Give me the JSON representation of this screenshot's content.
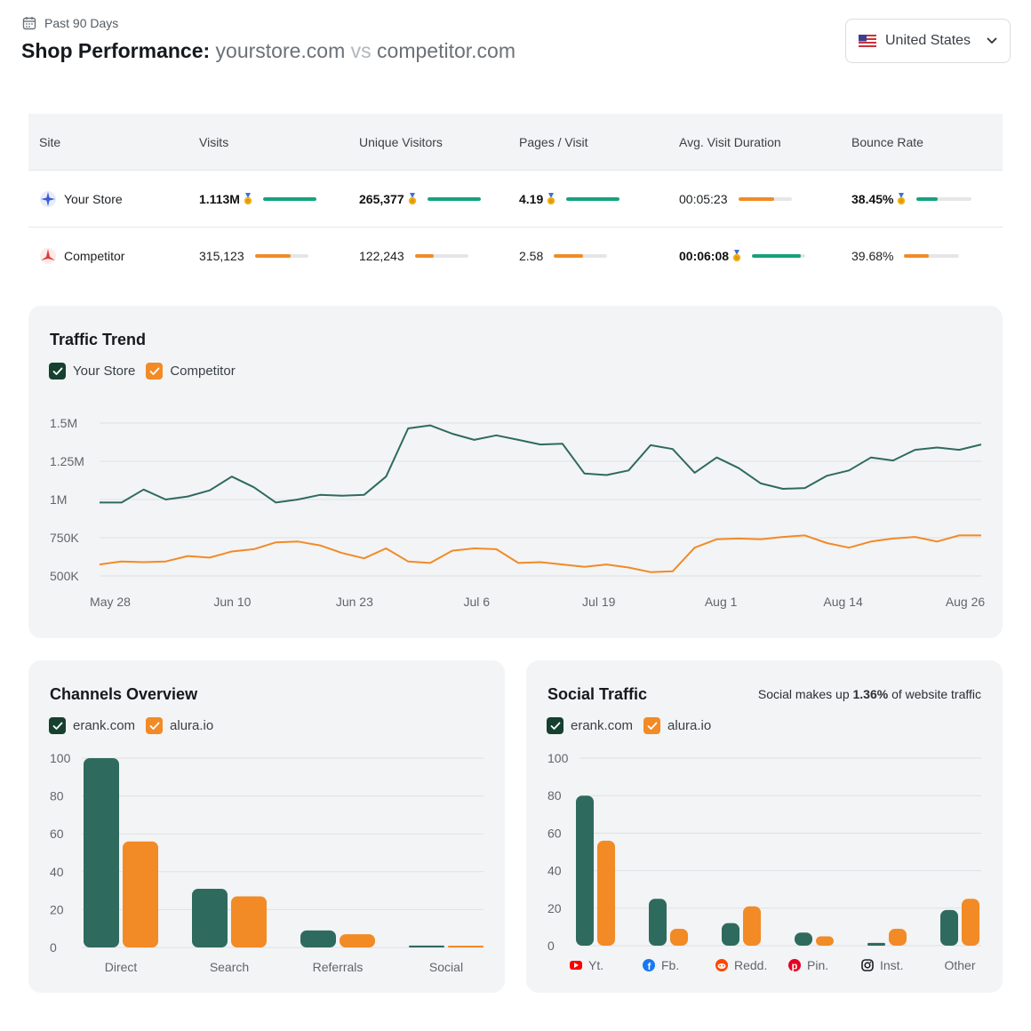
{
  "header": {
    "period": "Past 90 Days",
    "title_prefix": "Shop Performance:",
    "site_a": "yourstore.com",
    "vs": "vs",
    "site_b": "competitor.com",
    "calendar_icon": "calendar-icon"
  },
  "country_select": {
    "label": "United States",
    "flag_icon": "us-flag-icon",
    "chevron_icon": "chevron-down-icon"
  },
  "table": {
    "headers": [
      "Site",
      "Visits",
      "Unique Visitors",
      "Pages / Visit",
      "Avg. Visit Duration",
      "Bounce Rate"
    ],
    "rows": [
      {
        "site": "Your Store",
        "icon": "compass-icon",
        "cells": [
          {
            "value": "1.113M",
            "winner": true,
            "fill": 1.0
          },
          {
            "value": "265,377",
            "winner": true,
            "fill": 1.0
          },
          {
            "value": "4.19",
            "winner": true,
            "fill": 1.0
          },
          {
            "value": "00:05:23",
            "winner": false,
            "fill": 0.68
          },
          {
            "value": "38.45%",
            "winner": true,
            "fill": 0.38
          }
        ]
      },
      {
        "site": "Competitor",
        "icon": "star-icon",
        "cells": [
          {
            "value": "315,123",
            "winner": false,
            "fill": 0.68
          },
          {
            "value": "122,243",
            "winner": false,
            "fill": 0.36
          },
          {
            "value": "2.58",
            "winner": false,
            "fill": 0.54
          },
          {
            "value": "00:06:08",
            "winner": true,
            "fill": 0.92
          },
          {
            "value": "39.68%",
            "winner": false,
            "fill": 0.45
          }
        ]
      }
    ]
  },
  "colors": {
    "green": "#2f6a5f",
    "orange": "#f28a26",
    "bar_green": "#15a27d",
    "check_dark": "#16402f"
  },
  "chart_data": [
    {
      "type": "line",
      "title": "Traffic Trend",
      "legend": [
        "Your Store",
        "Competitor"
      ],
      "yticks": [
        "1.5M",
        "1.25M",
        "1M",
        "750K",
        "500K"
      ],
      "ytick_values": [
        1500000,
        1250000,
        1000000,
        750000,
        500000
      ],
      "ylim": [
        500000,
        1500000
      ],
      "xticks": [
        "May 28",
        "Jun 10",
        "Jun 23",
        "Jul 6",
        "Jul 19",
        "Aug 1",
        "Aug 14",
        "Aug 26"
      ],
      "grid": true,
      "series": [
        {
          "name": "Your Store",
          "values": [
            980000,
            980000,
            1065000,
            1000000,
            1020000,
            1060000,
            1150000,
            1080000,
            980000,
            1000000,
            1030000,
            1025000,
            1030000,
            1150000,
            1465000,
            1485000,
            1430000,
            1390000,
            1420000,
            1390000,
            1360000,
            1365000,
            1170000,
            1160000,
            1190000,
            1355000,
            1330000,
            1175000,
            1275000,
            1205000,
            1105000,
            1070000,
            1075000,
            1155000,
            1190000,
            1275000,
            1255000,
            1325000,
            1340000,
            1325000,
            1360000
          ]
        },
        {
          "name": "Competitor",
          "values": [
            575000,
            595000,
            590000,
            595000,
            630000,
            620000,
            660000,
            675000,
            720000,
            725000,
            700000,
            650000,
            615000,
            680000,
            595000,
            585000,
            665000,
            680000,
            675000,
            585000,
            590000,
            575000,
            560000,
            575000,
            555000,
            525000,
            530000,
            685000,
            740000,
            745000,
            740000,
            755000,
            765000,
            715000,
            685000,
            725000,
            745000,
            755000,
            725000,
            765000,
            765000
          ]
        }
      ]
    },
    {
      "type": "bar",
      "title": "Channels Overview",
      "legend": [
        "erank.com",
        "alura.io"
      ],
      "categories": [
        "Direct",
        "Search",
        "Referrals",
        "Social"
      ],
      "yticks": [
        "100",
        "80",
        "60",
        "40",
        "20",
        "0"
      ],
      "ytick_values": [
        100,
        80,
        60,
        40,
        20,
        0
      ],
      "ylim": [
        0,
        100
      ],
      "series": [
        {
          "name": "erank.com",
          "values": [
            100,
            31,
            9,
            1
          ]
        },
        {
          "name": "alura.io",
          "values": [
            56,
            27,
            7,
            0.5
          ]
        }
      ]
    },
    {
      "type": "bar",
      "title": "Social Traffic",
      "note_prefix": "Social makes up",
      "note_value": "1.36%",
      "note_suffix": "of website traffic",
      "legend": [
        "erank.com",
        "alura.io"
      ],
      "categories": [
        "Yt.",
        "Fb.",
        "Redd.",
        "Pin.",
        "Inst.",
        "Other"
      ],
      "category_icons": [
        "youtube-icon",
        "facebook-icon",
        "reddit-icon",
        "pinterest-icon",
        "instagram-icon",
        ""
      ],
      "yticks": [
        "100",
        "80",
        "60",
        "40",
        "20",
        "0"
      ],
      "ytick_values": [
        100,
        80,
        60,
        40,
        20,
        0
      ],
      "ylim": [
        0,
        100
      ],
      "series": [
        {
          "name": "erank.com",
          "values": [
            80,
            25,
            12,
            7,
            1.5,
            19
          ]
        },
        {
          "name": "alura.io",
          "values": [
            56,
            9,
            21,
            5,
            9,
            25
          ]
        }
      ]
    }
  ]
}
